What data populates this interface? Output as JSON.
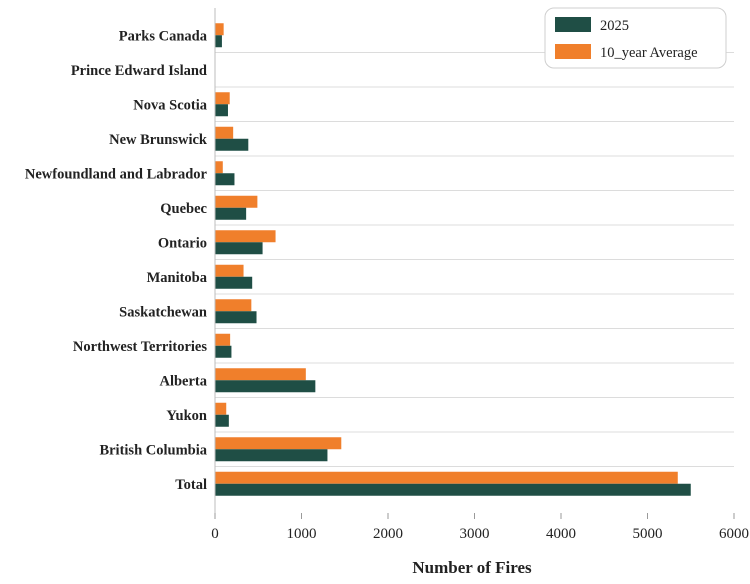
{
  "chart_data": {
    "type": "bar",
    "orientation": "horizontal",
    "title": "",
    "xlabel": "Number of Fires",
    "ylabel": "",
    "xlim": [
      0,
      6000
    ],
    "xticks": [
      0,
      1000,
      2000,
      3000,
      4000,
      5000,
      6000
    ],
    "grid": "horizontal lines at category boundaries",
    "legend_position": "top-right",
    "categories": [
      "Parks Canada",
      "Prince Edward Island",
      "Nova Scotia",
      "New Brunswick",
      "Newfoundland and Labrador",
      "Quebec",
      "Ontario",
      "Manitoba",
      "Saskatchewan",
      "Northwest Territories",
      "Alberta",
      "Yukon",
      "British Columbia",
      "Total"
    ],
    "series": [
      {
        "name": "2025",
        "color": "#1f4e45",
        "values": [
          80,
          0,
          150,
          385,
          225,
          360,
          550,
          430,
          480,
          190,
          1160,
          160,
          1300,
          5500
        ]
      },
      {
        "name": "10_year Average",
        "color": "#f07f2b",
        "values": [
          100,
          0,
          170,
          210,
          90,
          490,
          700,
          330,
          420,
          175,
          1050,
          130,
          1460,
          5350
        ]
      }
    ]
  }
}
